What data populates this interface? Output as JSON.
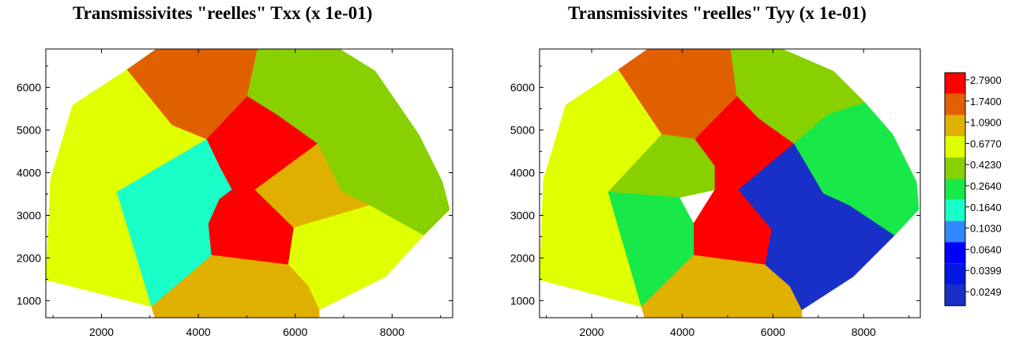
{
  "chart_data": [
    {
      "type": "heatmap",
      "title": "Transmissivites \"reelles\" Txx (x 1e-01)",
      "xlim": [
        850,
        9250
      ],
      "ylim": [
        600,
        6900
      ],
      "x_ticks": [
        2000,
        4000,
        6000,
        8000
      ],
      "y_ticks": [
        1000,
        2000,
        3000,
        4000,
        5000,
        6000
      ],
      "zones": [
        {
          "id": "z1",
          "color": "#e0ff00",
          "class": "0.6770"
        },
        {
          "id": "z2",
          "color": "#e06000",
          "class": "1.7400"
        },
        {
          "id": "z3",
          "color": "#88d000",
          "class": "0.4230"
        },
        {
          "id": "z4",
          "color": "#18ffc8",
          "class": "0.1640"
        },
        {
          "id": "z5",
          "color": "#ff0000",
          "class": "2.7900"
        },
        {
          "id": "z6",
          "color": "#e0b000",
          "class": "1.0900"
        },
        {
          "id": "z7",
          "color": "#e0ff00",
          "class": "0.6770"
        },
        {
          "id": "z8",
          "color": "#e0b000",
          "class": "1.0900"
        }
      ]
    },
    {
      "type": "heatmap",
      "title": "Transmissivites \"reelles\" Tyy (x 1e-01)",
      "xlim": [
        850,
        9250
      ],
      "ylim": [
        600,
        6900
      ],
      "x_ticks": [
        2000,
        4000,
        6000,
        8000
      ],
      "y_ticks": [
        1000,
        2000,
        3000,
        4000,
        5000,
        6000
      ],
      "zones": [
        {
          "id": "z1",
          "color": "#e0ff00",
          "class": "0.6770"
        },
        {
          "id": "z2",
          "color": "#e06000",
          "class": "1.7400"
        },
        {
          "id": "z3",
          "color": "#88d000",
          "class": "0.4230"
        },
        {
          "id": "z4",
          "color": "#88d000",
          "class": "0.4230"
        },
        {
          "id": "z5",
          "color": "#ff0000",
          "class": "2.7900"
        },
        {
          "id": "z6",
          "color": "#18e848",
          "class": "0.2640"
        },
        {
          "id": "z7",
          "color": "#18e848",
          "class": "0.2640"
        },
        {
          "id": "z8",
          "color": "#e0b000",
          "class": "1.0900"
        },
        {
          "id": "z9",
          "color": "#1830c8",
          "class": "0.0249"
        }
      ]
    }
  ],
  "legend": {
    "entries": [
      {
        "label": "2.7900",
        "color": "#ff0000"
      },
      {
        "label": "1.7400",
        "color": "#e06000"
      },
      {
        "label": "1.0900",
        "color": "#e0b000"
      },
      {
        "label": "0.6770",
        "color": "#e0ff00"
      },
      {
        "label": "0.4230",
        "color": "#88d000"
      },
      {
        "label": "0.2640",
        "color": "#18e848"
      },
      {
        "label": "0.1640",
        "color": "#18ffc8"
      },
      {
        "label": "0.1030",
        "color": "#3088ff"
      },
      {
        "label": "0.0640",
        "color": "#0000ff"
      },
      {
        "label": "0.0399",
        "color": "#0018e0"
      },
      {
        "label": "0.0249",
        "color": "#1830c8"
      }
    ]
  }
}
